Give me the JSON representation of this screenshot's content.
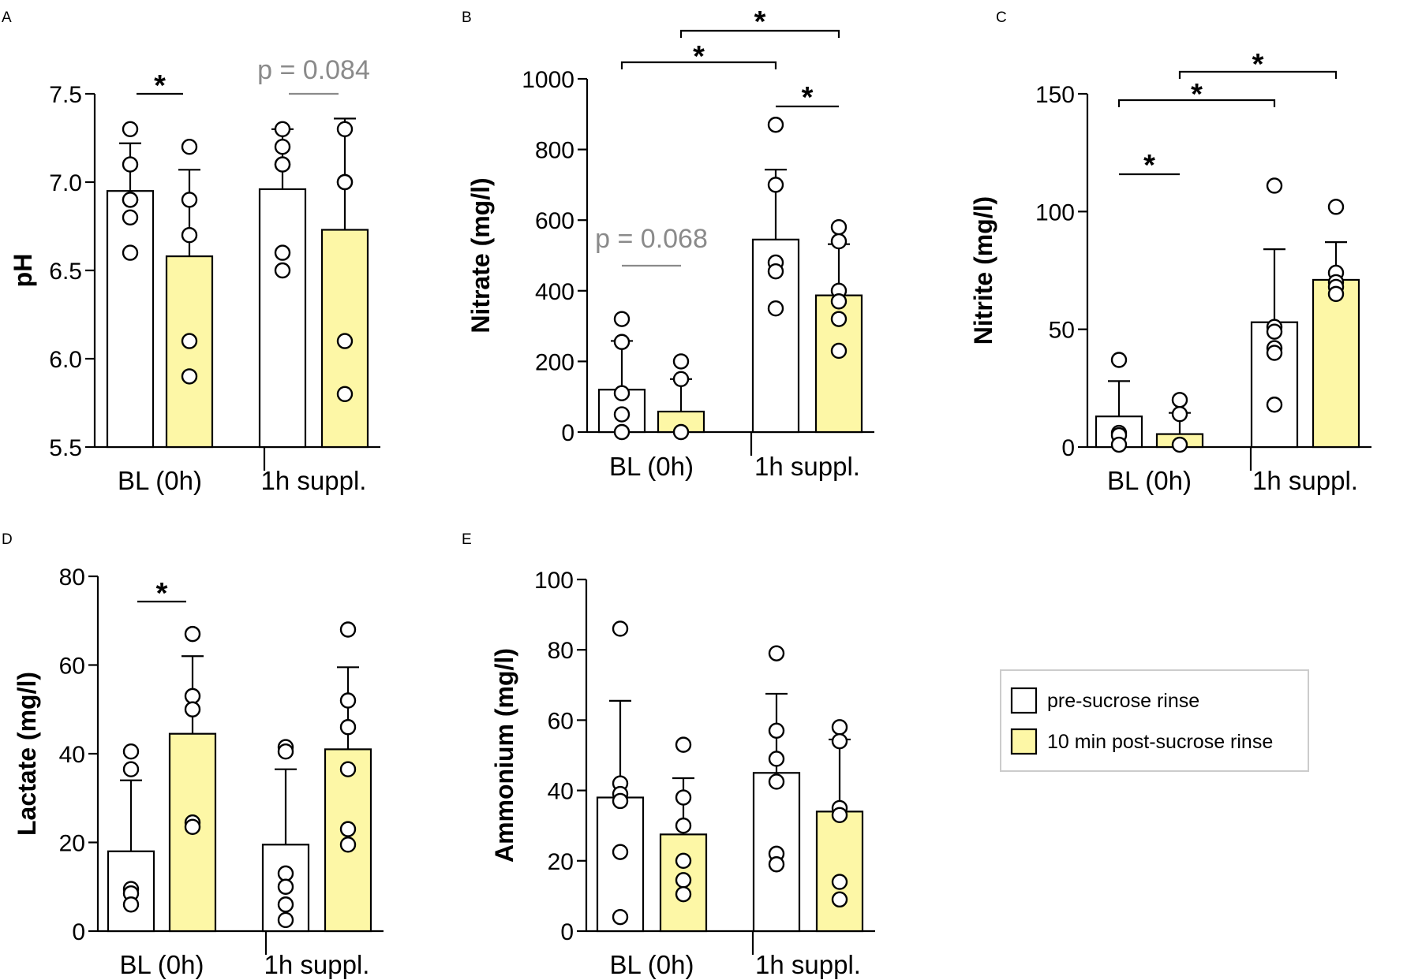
{
  "figure": {
    "colors": {
      "pre": "#ffffff",
      "post": "#fdf7a6",
      "stroke": "#000000",
      "ns": "#8a8a8a",
      "legend_border": "#cccccc"
    },
    "groups": [
      "BL (0h)",
      "1h suppl."
    ],
    "legend": {
      "items": [
        {
          "label": "pre-sucrose rinse",
          "color": "#ffffff"
        },
        {
          "label": "10 min post-sucrose rinse",
          "color": "#fdf7a6"
        }
      ]
    }
  },
  "chart_data": [
    {
      "panel": "A",
      "type": "bar",
      "ylabel": "pH",
      "ylim": [
        5.5,
        7.5
      ],
      "yticks": [
        5.5,
        6.0,
        6.5,
        7.0,
        7.5
      ],
      "ytick_labels": [
        "5.5",
        "6.0",
        "6.5",
        "7.0",
        "7.5"
      ],
      "categories": [
        "BL (0h)",
        "1h suppl."
      ],
      "series": [
        {
          "name": "pre-sucrose rinse",
          "values": [
            6.95,
            6.96
          ],
          "sd": [
            0.27,
            0.34
          ],
          "points": [
            [
              7.3,
              7.1,
              6.9,
              6.9,
              6.8,
              6.6
            ],
            [
              7.3,
              7.2,
              7.1,
              7.1,
              6.6,
              6.5
            ]
          ]
        },
        {
          "name": "10 min post-sucrose rinse",
          "values": [
            6.58,
            6.73
          ],
          "sd": [
            0.49,
            0.63
          ],
          "points": [
            [
              7.2,
              6.9,
              6.7,
              6.1,
              5.9
            ],
            [
              7.3,
              7.0,
              7.0,
              6.1,
              5.8
            ]
          ]
        }
      ],
      "annotations": [
        {
          "text": "*",
          "from": 0,
          "to": 1,
          "y": 7.0,
          "gray": false
        },
        {
          "text": "p = 0.084",
          "from": 2,
          "to": 3,
          "y": 7.0,
          "gray": true
        }
      ]
    },
    {
      "panel": "B",
      "type": "bar",
      "ylabel": "Nitrate (mg/l)",
      "ylim": [
        0,
        1000
      ],
      "yticks": [
        0,
        200,
        400,
        600,
        800,
        1000
      ],
      "ytick_labels": [
        "0",
        "200",
        "400",
        "600",
        "800",
        "1000"
      ],
      "categories": [
        "BL (0h)",
        "1h suppl."
      ],
      "series": [
        {
          "name": "pre-sucrose rinse",
          "values": [
            120,
            545
          ],
          "sd": [
            138,
            198
          ],
          "points": [
            [
              320,
              255,
              110,
              50,
              0
            ],
            [
              870,
              700,
              480,
              455,
              350
            ]
          ]
        },
        {
          "name": "10 min post-sucrose rinse",
          "values": [
            58,
            387
          ],
          "sd": [
            92,
            145
          ],
          "points": [
            [
              200,
              150,
              0
            ],
            [
              580,
              540,
              400,
              370,
              320,
              230
            ]
          ]
        }
      ],
      "annotations": [
        {
          "text": "p = 0.068",
          "from": 0,
          "to": 1,
          "y": 0,
          "gray": true
        },
        {
          "text": "*",
          "from": 0,
          "to": 2,
          "y": 0,
          "gray": false
        },
        {
          "text": "*",
          "from": 1,
          "to": 3,
          "y": 0,
          "gray": false
        },
        {
          "text": "*",
          "from": 2,
          "to": 3,
          "y": 0,
          "gray": false
        }
      ]
    },
    {
      "panel": "C",
      "type": "bar",
      "ylabel": "Nitrite (mg/l)",
      "ylim": [
        0,
        150
      ],
      "yticks": [
        0,
        50,
        100,
        150
      ],
      "ytick_labels": [
        "0",
        "50",
        "100",
        "150"
      ],
      "categories": [
        "BL (0h)",
        "1h suppl."
      ],
      "series": [
        {
          "name": "pre-sucrose rinse",
          "values": [
            13,
            53
          ],
          "sd": [
            15,
            31
          ],
          "points": [
            [
              37,
              6,
              5,
              1
            ],
            [
              111,
              51,
              49,
              42,
              40,
              18
            ]
          ]
        },
        {
          "name": "10 min post-sucrose rinse",
          "values": [
            5.5,
            71
          ],
          "sd": [
            9,
            16
          ],
          "points": [
            [
              20,
              14,
              1
            ],
            [
              102,
              74,
              70,
              68,
              65
            ]
          ]
        }
      ],
      "annotations": [
        {
          "text": "*",
          "from": 0,
          "to": 1,
          "y": 0,
          "gray": false
        },
        {
          "text": "*",
          "from": 0,
          "to": 2,
          "y": 0,
          "gray": false
        },
        {
          "text": "*",
          "from": 1,
          "to": 3,
          "y": 0,
          "gray": false
        }
      ]
    },
    {
      "panel": "D",
      "type": "bar",
      "ylabel": "Lactate (mg/l)",
      "ylim": [
        0,
        80
      ],
      "yticks": [
        0,
        20,
        40,
        60,
        80
      ],
      "ytick_labels": [
        "0",
        "20",
        "40",
        "60",
        "80"
      ],
      "categories": [
        "BL (0h)",
        "1h suppl."
      ],
      "series": [
        {
          "name": "pre-sucrose rinse",
          "values": [
            18,
            19.5
          ],
          "sd": [
            16,
            17
          ],
          "points": [
            [
              40.5,
              36.5,
              9.5,
              8.5,
              6
            ],
            [
              41.5,
              40.5,
              13,
              10,
              6,
              2.5
            ]
          ]
        },
        {
          "name": "10 min post-sucrose rinse",
          "values": [
            44.5,
            41
          ],
          "sd": [
            17.5,
            18.5
          ],
          "points": [
            [
              67,
              53,
              50,
              24.5,
              23.5
            ],
            [
              68,
              52,
              46,
              36.5,
              23,
              19.5
            ]
          ]
        }
      ],
      "annotations": [
        {
          "text": "*",
          "from": 0,
          "to": 1,
          "y": 0,
          "gray": false
        }
      ]
    },
    {
      "panel": "E",
      "type": "bar",
      "ylabel": "Ammonium (mg/l)",
      "ylim": [
        0,
        100
      ],
      "yticks": [
        0,
        20,
        40,
        60,
        80,
        100
      ],
      "ytick_labels": [
        "0",
        "20",
        "40",
        "60",
        "80",
        "100"
      ],
      "categories": [
        "BL (0h)",
        "1h suppl."
      ],
      "series": [
        {
          "name": "pre-sucrose rinse",
          "values": [
            38,
            45
          ],
          "sd": [
            27.5,
            22.5
          ],
          "points": [
            [
              86,
              42,
              39,
              37,
              22.5,
              4
            ],
            [
              79,
              57,
              49,
              42.5,
              22,
              19
            ]
          ]
        },
        {
          "name": "10 min post-sucrose rinse",
          "values": [
            27.5,
            34
          ],
          "sd": [
            16,
            20.5
          ],
          "points": [
            [
              53,
              38,
              30,
              20,
              14.5,
              10.5
            ],
            [
              58,
              54,
              35,
              33,
              14,
              9
            ]
          ]
        }
      ],
      "annotations": []
    }
  ]
}
